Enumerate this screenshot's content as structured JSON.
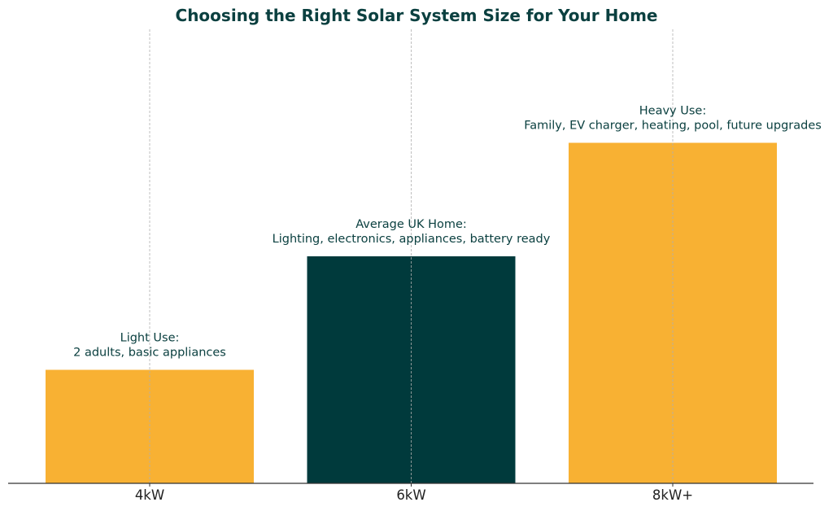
{
  "chart_data": {
    "type": "bar",
    "title": "Choosing the Right Solar System Size for Your Home",
    "categories": [
      "4kW",
      "6kW",
      "8kW+"
    ],
    "values": [
      1,
      2,
      3
    ],
    "colors": [
      "#f8b133",
      "#003a3c",
      "#f8b133"
    ],
    "annotations": [
      [
        "Light Use:",
        "2 adults, basic appliances"
      ],
      [
        "Average UK Home:",
        "Lighting, electronics, appliances, battery ready"
      ],
      [
        "Heavy Use:",
        "Family, EV charger, heating, pool, future upgrades"
      ]
    ],
    "xlabel": "",
    "ylabel": "",
    "ylim": [
      0,
      4
    ],
    "grid": "x-dashed",
    "text_color": "#0b4040"
  }
}
